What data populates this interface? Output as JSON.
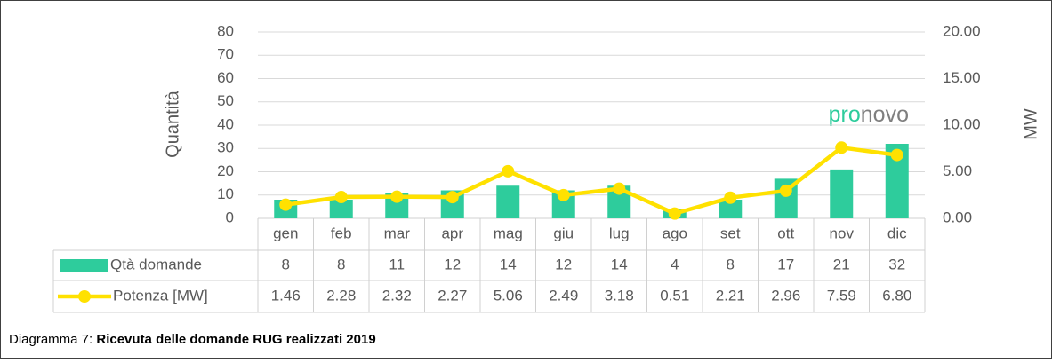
{
  "chart_data": {
    "type": "bar_line_table",
    "categories": [
      "gen",
      "feb",
      "mar",
      "apr",
      "mag",
      "giu",
      "lug",
      "ago",
      "set",
      "ott",
      "nov",
      "dic"
    ],
    "series": [
      {
        "name": "Qtà domande",
        "type": "bar",
        "color": "#2ecc9c",
        "values": [
          8,
          8,
          11,
          12,
          14,
          12,
          14,
          4,
          8,
          17,
          21,
          32
        ]
      },
      {
        "name": "Potenza [MW]",
        "type": "line",
        "axis": "y2",
        "color": "#ffe100",
        "values": [
          1.46,
          2.28,
          2.32,
          2.27,
          5.06,
          2.49,
          3.18,
          0.51,
          2.21,
          2.96,
          7.59,
          6.8
        ],
        "value_labels": [
          "1.46",
          "2.28",
          "2.32",
          "2.27",
          "5.06",
          "2.49",
          "3.18",
          "0.51",
          "2.21",
          "2.96",
          "7.59",
          "6.80"
        ]
      }
    ],
    "ylabel": "Quantità",
    "y2label": "MW",
    "ylim": [
      0,
      80
    ],
    "yticks": [
      0,
      10,
      20,
      30,
      40,
      50,
      60,
      70,
      80
    ],
    "y2lim": [
      0,
      20
    ],
    "y2ticks": [
      {
        "value": 0,
        "label": "0.00"
      },
      {
        "value": 5,
        "label": "5.00"
      },
      {
        "value": 10,
        "label": "10.00"
      },
      {
        "value": 15,
        "label": "15.00"
      },
      {
        "value": 20,
        "label": "20.00"
      }
    ],
    "grid": true,
    "logo": [
      "pro",
      "novo"
    ],
    "caption_prefix": "Diagramma 7: ",
    "caption_bold": "Ricevuta delle domande RUG realizzati 2019"
  }
}
